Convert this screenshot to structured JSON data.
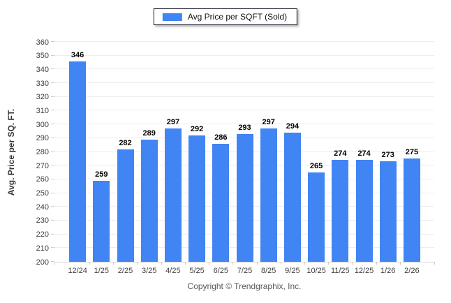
{
  "legend": {
    "label": "Avg Price per SQFT (Sold)"
  },
  "chart_data": {
    "type": "bar",
    "title": "",
    "categories": [
      "12/24",
      "1/25",
      "2/25",
      "3/25",
      "4/25",
      "5/25",
      "6/25",
      "7/25",
      "8/25",
      "9/25",
      "10/25",
      "11/25",
      "12/25",
      "1/26",
      "2/26"
    ],
    "values": [
      346,
      259,
      282,
      289,
      297,
      292,
      286,
      293,
      297,
      294,
      265,
      274,
      274,
      273,
      275
    ],
    "series_name": "Avg Price per SQFT (Sold)",
    "xlabel": "",
    "ylabel": "Avg. Price per SQ. FT.",
    "ylim": [
      200,
      360
    ],
    "ytick_step": 10,
    "grid": "horizontal",
    "legend_position": "top-center",
    "data_labels": true,
    "bar_color": "#4184F3",
    "gridline_color": "#ededed",
    "axis_line_color": "#d8d8d8"
  },
  "footer": {
    "copyright": "Copyright © Trendgraphix, Inc."
  }
}
